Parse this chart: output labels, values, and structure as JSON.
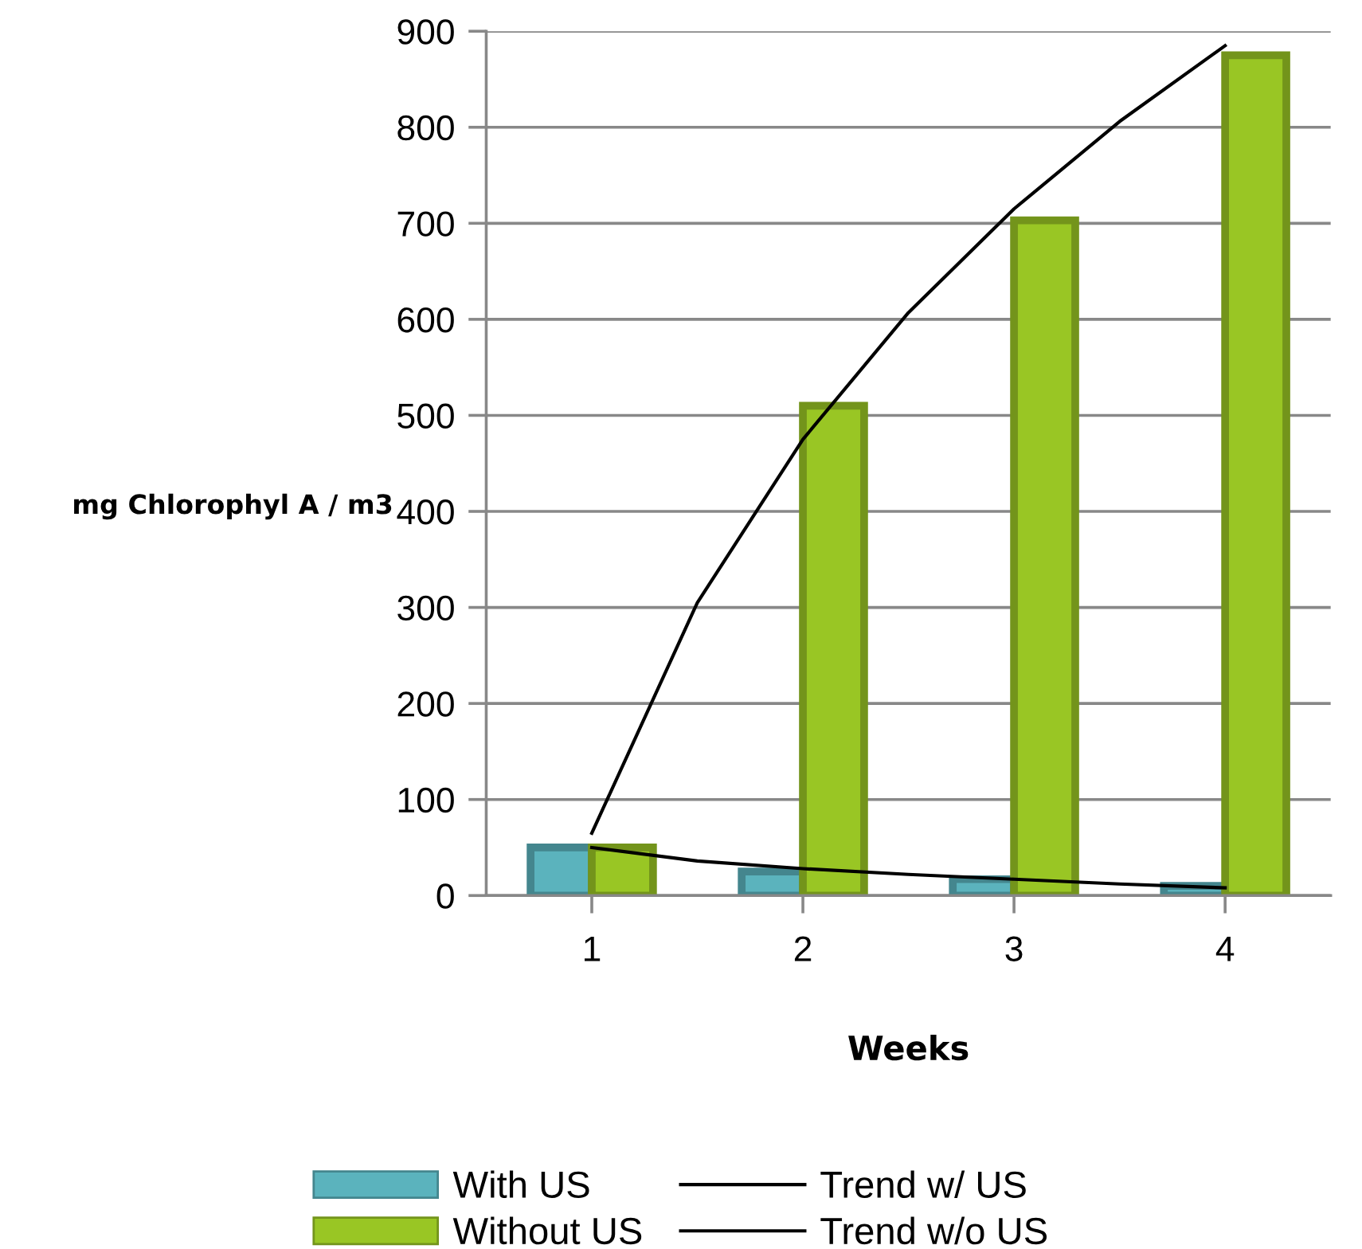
{
  "chart_data": {
    "type": "bar",
    "xlabel": "Weeks",
    "ylabel": "mg Chlorophyl A / m3",
    "x": [
      1,
      2,
      3,
      4
    ],
    "xlim": [
      0.5,
      4.5
    ],
    "xticks": [
      1,
      2,
      3,
      4
    ],
    "ylim": [
      0,
      900
    ],
    "yticks": [
      0,
      100,
      200,
      300,
      400,
      500,
      600,
      700,
      800,
      900
    ],
    "grid": "y",
    "legend": "bottom",
    "series": [
      {
        "name": "With US",
        "color": "#5bb3bd",
        "values": [
          50,
          25,
          17,
          10
        ]
      },
      {
        "name": "Without US",
        "color": "#99c624",
        "values": [
          50,
          510,
          703,
          875
        ]
      },
      {
        "name": "Trend w/ US",
        "type": "line",
        "color": "#000000",
        "x": [
          1,
          1.5,
          2,
          2.5,
          3,
          3.5,
          4
        ],
        "values": [
          50,
          36,
          28,
          22,
          17,
          12,
          8
        ]
      },
      {
        "name": "Trend w/o US",
        "type": "line",
        "color": "#000000",
        "x": [
          1,
          1.5,
          2,
          2.5,
          3,
          3.5,
          4
        ],
        "values": [
          65,
          305,
          475,
          607,
          715,
          806,
          885
        ]
      }
    ]
  }
}
